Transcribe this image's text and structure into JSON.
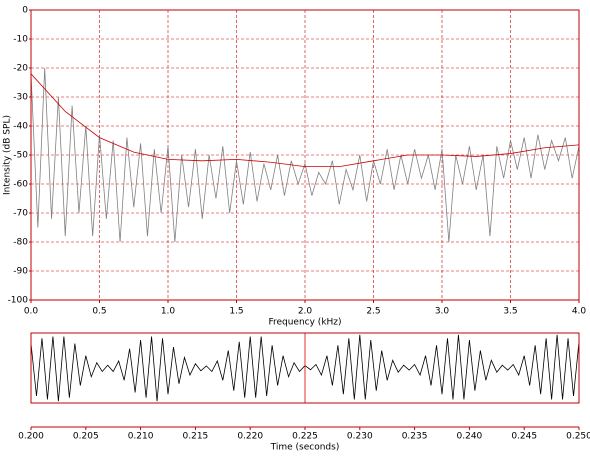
{
  "chart_data": [
    {
      "type": "line",
      "xlabel": "Frequency (kHz)",
      "ylabel": "Intensity (dB SPL)",
      "xlim": [
        0,
        4
      ],
      "ylim": [
        -100,
        0
      ],
      "xticks": [
        {
          "value": 0,
          "label": "0.0"
        },
        {
          "value": 0.5,
          "label": "0.5"
        },
        {
          "value": 1,
          "label": "1.0"
        },
        {
          "value": 1.5,
          "label": "1.5"
        },
        {
          "value": 2,
          "label": "2.0"
        },
        {
          "value": 2.5,
          "label": "2.5"
        },
        {
          "value": 3,
          "label": "3.0"
        },
        {
          "value": 3.5,
          "label": "3.5"
        },
        {
          "value": 4,
          "label": "4.0"
        }
      ],
      "yticks": [
        0,
        -10,
        -20,
        -30,
        -40,
        -50,
        -60,
        -70,
        -80,
        -90,
        -100
      ],
      "grid": true,
      "grid_color": "#d00000",
      "frame_color": "#c00000",
      "series": [
        {
          "color": "#808080",
          "x": [
            0,
            0.05,
            0.1,
            0.15,
            0.2,
            0.25,
            0.3,
            0.35,
            0.4,
            0.45,
            0.5,
            0.55,
            0.6,
            0.65,
            0.7,
            0.75,
            0.8,
            0.85,
            0.9,
            0.95,
            1,
            1.05,
            1.1,
            1.15,
            1.2,
            1.25,
            1.3,
            1.35,
            1.4,
            1.45,
            1.5,
            1.55,
            1.6,
            1.65,
            1.7,
            1.75,
            1.8,
            1.85,
            1.9,
            1.95,
            2,
            2.05,
            2.1,
            2.15,
            2.2,
            2.25,
            2.3,
            2.35,
            2.4,
            2.45,
            2.5,
            2.55,
            2.6,
            2.65,
            2.7,
            2.75,
            2.8,
            2.85,
            2.9,
            2.95,
            3,
            3.05,
            3.1,
            3.15,
            3.2,
            3.25,
            3.3,
            3.35,
            3.4,
            3.45,
            3.5,
            3.55,
            3.6,
            3.65,
            3.7,
            3.75,
            3.8,
            3.85,
            3.9,
            3.95,
            4
          ],
          "values": [
            -22,
            -75,
            -20,
            -72,
            -30,
            -78,
            -33,
            -70,
            -40,
            -78,
            -43,
            -72,
            -45,
            -80,
            -44,
            -68,
            -46,
            -78,
            -48,
            -70,
            -47,
            -80,
            -50,
            -68,
            -48,
            -72,
            -50,
            -65,
            -47,
            -70,
            -52,
            -67,
            -49,
            -66,
            -53,
            -62,
            -50,
            -64,
            -52,
            -60,
            -53,
            -64,
            -56,
            -60,
            -52,
            -67,
            -55,
            -62,
            -50,
            -66,
            -52,
            -60,
            -48,
            -62,
            -50,
            -60,
            -48,
            -58,
            -50,
            -62,
            -48,
            -80,
            -50,
            -60,
            -47,
            -62,
            -50,
            -78,
            -47,
            -58,
            -45,
            -55,
            -44,
            -58,
            -43,
            -55,
            -45,
            -52,
            -44,
            -58,
            -47
          ]
        },
        {
          "color": "#cc0000",
          "x": [
            0,
            0.25,
            0.5,
            0.75,
            1,
            1.25,
            1.5,
            1.75,
            2,
            2.25,
            2.5,
            2.75,
            3,
            3.25,
            3.5,
            3.75,
            4
          ],
          "values": [
            -22,
            -35,
            -44,
            -49,
            -51.5,
            -52,
            -51.5,
            -52.5,
            -54,
            -54,
            -52,
            -50,
            -50,
            -50.5,
            -49.5,
            -47.5,
            -46.5
          ]
        }
      ]
    },
    {
      "type": "line",
      "xlabel": "Time (seconds)",
      "xlim": [
        0.2,
        0.25
      ],
      "ylim": [
        -1,
        1
      ],
      "xticks": [
        {
          "value": 0.2,
          "label": "0.200"
        },
        {
          "value": 0.205,
          "label": "0.205"
        },
        {
          "value": 0.21,
          "label": "0.210"
        },
        {
          "value": 0.215,
          "label": "0.215"
        },
        {
          "value": 0.22,
          "label": "0.220"
        },
        {
          "value": 0.225,
          "label": "0.225"
        },
        {
          "value": 0.23,
          "label": "0.230"
        },
        {
          "value": 0.235,
          "label": "0.235"
        },
        {
          "value": 0.24,
          "label": "0.240"
        },
        {
          "value": 0.245,
          "label": "0.245"
        },
        {
          "value": 0.25,
          "label": "0.250"
        }
      ],
      "cursor": 0.225,
      "cursor_color": "#e03030",
      "frame_color": "#c00000",
      "series": [
        {
          "color": "#000000",
          "x": [
            0.2,
            0.2005,
            0.201,
            0.2015,
            0.202,
            0.2025,
            0.203,
            0.2035,
            0.204,
            0.2045,
            0.205,
            0.2055,
            0.206,
            0.2065,
            0.207,
            0.2075,
            0.208,
            0.2085,
            0.209,
            0.2095,
            0.21,
            0.2105,
            0.211,
            0.2115,
            0.212,
            0.2125,
            0.213,
            0.2135,
            0.214,
            0.2145,
            0.215,
            0.2155,
            0.216,
            0.2165,
            0.217,
            0.2175,
            0.218,
            0.2185,
            0.219,
            0.2195,
            0.22,
            0.2205,
            0.221,
            0.2215,
            0.222,
            0.2225,
            0.223,
            0.2235,
            0.224,
            0.2245,
            0.225,
            0.2255,
            0.226,
            0.2265,
            0.227,
            0.2275,
            0.228,
            0.2285,
            0.229,
            0.2295,
            0.23,
            0.2305,
            0.231,
            0.2315,
            0.232,
            0.2325,
            0.233,
            0.2335,
            0.234,
            0.2345,
            0.235,
            0.2355,
            0.236,
            0.2365,
            0.237,
            0.2375,
            0.238,
            0.2385,
            0.239,
            0.2395,
            0.24,
            0.2405,
            0.241,
            0.2415,
            0.242,
            0.2425,
            0.243,
            0.2435,
            0.244,
            0.2445,
            0.245,
            0.2455,
            0.246,
            0.2465,
            0.247,
            0.2475,
            0.248,
            0.2485,
            0.249,
            0.2495,
            0.25
          ],
          "values": [
            0.7,
            -0.8,
            0.85,
            -0.9,
            0.9,
            -0.95,
            0.9,
            -0.85,
            0.7,
            -0.5,
            0.35,
            -0.25,
            0.15,
            -0.1,
            0.08,
            -0.1,
            0.2,
            -0.35,
            0.55,
            -0.7,
            0.8,
            -0.85,
            0.9,
            -0.95,
            0.85,
            -0.75,
            0.6,
            -0.45,
            0.3,
            -0.2,
            0.12,
            -0.08,
            0.06,
            -0.1,
            0.2,
            -0.35,
            0.5,
            -0.65,
            0.75,
            -0.85,
            0.9,
            -0.85,
            0.9,
            -0.8,
            0.65,
            -0.5,
            0.35,
            -0.25,
            0.15,
            -0.1,
            0.07,
            -0.05,
            0.1,
            -0.2,
            0.35,
            -0.5,
            0.65,
            -0.75,
            0.85,
            -0.9,
            0.95,
            -0.9,
            0.8,
            -0.65,
            0.5,
            -0.35,
            0.22,
            -0.12,
            0.08,
            -0.06,
            0.1,
            -0.2,
            0.35,
            -0.5,
            0.65,
            -0.75,
            0.85,
            -0.9,
            0.95,
            -0.9,
            0.8,
            -0.65,
            0.5,
            -0.35,
            0.22,
            -0.12,
            0.08,
            -0.06,
            0.1,
            -0.2,
            0.35,
            -0.5,
            0.65,
            -0.75,
            0.85,
            -0.9,
            0.95,
            -0.9,
            0.85,
            -0.8,
            0.75
          ]
        }
      ]
    }
  ]
}
